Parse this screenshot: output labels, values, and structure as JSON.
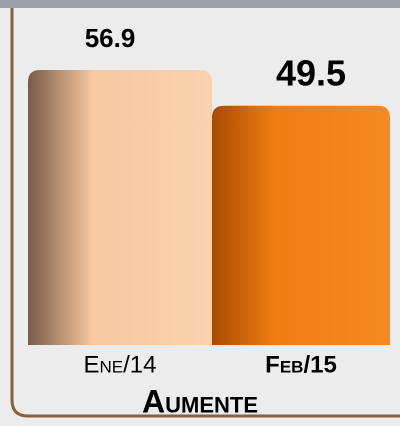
{
  "chart_data": {
    "type": "bar",
    "categories": [
      "Ene/14",
      "Feb/15"
    ],
    "values": [
      56.9,
      49.5
    ],
    "colors": [
      "#f8c8a0",
      "#f07d12"
    ],
    "ylim": [
      0,
      60
    ],
    "xlabel": "Aumente"
  }
}
